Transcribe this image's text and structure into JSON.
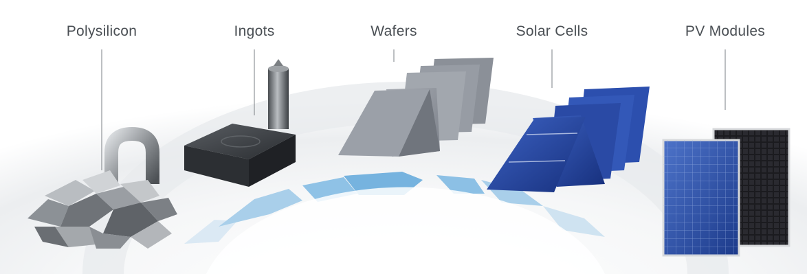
{
  "stages": [
    {
      "id": "polysilicon",
      "label": "Polysilicon"
    },
    {
      "id": "ingots",
      "label": "Ingots"
    },
    {
      "id": "wafers",
      "label": "Wafers"
    },
    {
      "id": "solar-cells",
      "label": "Solar Cells"
    },
    {
      "id": "pv-modules",
      "label": "PV Modules"
    }
  ],
  "colors": {
    "arrow_light": "#cfe3f1",
    "arrow_dark": "#6fb0dc",
    "wafer": "#8f949c",
    "cell_blue": "#1f3f9a",
    "module_blue": "#2c4d9e",
    "module_black": "#1b1b1f",
    "label_text": "#4a4f54"
  }
}
